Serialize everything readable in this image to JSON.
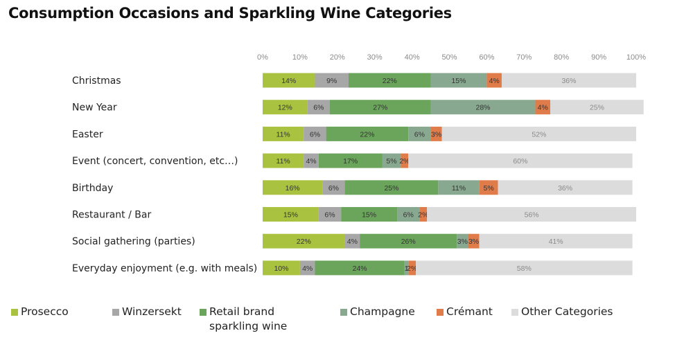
{
  "chart_data": {
    "type": "bar",
    "orientation": "horizontal",
    "stacked": true,
    "title": "Consumption Occasions and Sparkling Wine Categories",
    "categories": [
      "Christmas",
      "New Year",
      "Easter",
      "Event (concert, convention, etc…)",
      "Birthday",
      "Restaurant / Bar",
      "Social gathering (parties)",
      "Everyday enjoyment (e.g. with meals)"
    ],
    "series": [
      {
        "name": "Prosecco",
        "color": "#a9c23f",
        "label_color": "#333333",
        "values": [
          14,
          12,
          11,
          11,
          16,
          15,
          22,
          10
        ],
        "labels": [
          "14%",
          "12%",
          "11%",
          "11%",
          "16%",
          "15%",
          "22%",
          "10%"
        ]
      },
      {
        "name": "Winzersekt",
        "color": "#a7a7a7",
        "label_color": "#333333",
        "values": [
          9,
          6,
          6,
          4,
          6,
          6,
          4,
          4
        ],
        "labels": [
          "9%",
          "6%",
          "6%",
          "4%",
          "6%",
          "6%",
          "4%",
          "4%"
        ]
      },
      {
        "name": "Retail brand sparkling wine",
        "color": "#6aa55b",
        "label_color": "#333333",
        "values": [
          22,
          27,
          22,
          17,
          25,
          15,
          26,
          24
        ],
        "labels": [
          "22%",
          "27%",
          "22%",
          "17%",
          "25%",
          "15%",
          "26%",
          "24%"
        ]
      },
      {
        "name": "Champagne",
        "color": "#88a990",
        "label_color": "#333333",
        "values": [
          15,
          28,
          6,
          5,
          11,
          6,
          3,
          1
        ],
        "labels": [
          "15%",
          "28%",
          "6%",
          "5%",
          "11%",
          "6%",
          "3%",
          "1"
        ]
      },
      {
        "name": "Crémant",
        "color": "#e07b4a",
        "label_color": "#333333",
        "values": [
          4,
          4,
          3,
          2,
          5,
          2,
          3,
          2
        ],
        "labels": [
          "4%",
          "4%",
          "3%",
          "2%",
          "5%",
          "2%",
          "3%",
          "2%"
        ]
      },
      {
        "name": "Other Categories",
        "color": "#dcdcdc",
        "label_color": "#8a8a8a",
        "values": [
          36,
          25,
          52,
          60,
          36,
          56,
          41,
          58
        ],
        "labels": [
          "36%",
          "25%",
          "52%",
          "60%",
          "36%",
          "56%",
          "41%",
          "58%"
        ]
      }
    ],
    "xlim": [
      0,
      100
    ],
    "x_ticks": [
      "0%",
      "10%",
      "20%",
      "30%",
      "40%",
      "50%",
      "60%",
      "70%",
      "80%",
      "90%",
      "100%"
    ],
    "grid": false,
    "legend_position": "bottom"
  },
  "legend": {
    "items": [
      {
        "name": "Prosecco",
        "lines": [
          "Prosecco"
        ],
        "color": "#a9c23f"
      },
      {
        "name": "Winzersekt",
        "lines": [
          "Winzersekt"
        ],
        "color": "#a7a7a7"
      },
      {
        "name": "Retail brand sparkling wine",
        "lines": [
          "Retail brand",
          "sparkling wine"
        ],
        "color": "#6aa55b"
      },
      {
        "name": "Champagne",
        "lines": [
          "Champagne"
        ],
        "color": "#88a990"
      },
      {
        "name": "Crémant",
        "lines": [
          "Crémant"
        ],
        "color": "#e07b4a"
      },
      {
        "name": "Other Categories",
        "lines": [
          "Other Categories"
        ],
        "color": "#dcdcdc"
      }
    ]
  }
}
